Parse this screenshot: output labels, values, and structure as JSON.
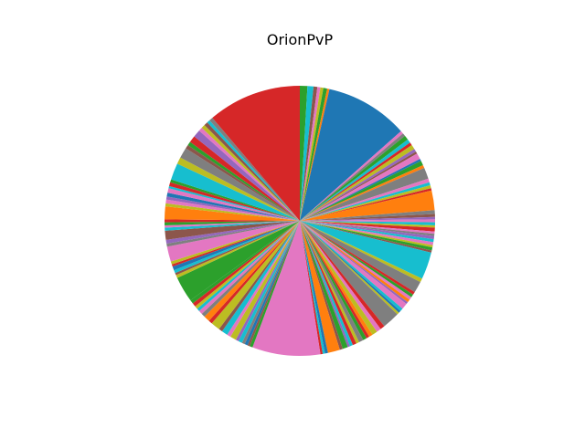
{
  "chart_data": {
    "type": "pie",
    "title": "OrionPvP",
    "start_angle_deg": 90,
    "direction": "clockwise",
    "grid": false,
    "legend": "none",
    "palette": [
      "#1f77b4",
      "#ff7f0e",
      "#2ca02c",
      "#d62728",
      "#9467bd",
      "#8c564b",
      "#e377c2",
      "#7f7f7f",
      "#bcbd22",
      "#17becf"
    ],
    "slices": [
      {
        "value": 1.0,
        "color": "#2ca02c"
      },
      {
        "value": 0.8,
        "color": "#17becf"
      },
      {
        "value": 0.5,
        "color": "#8c564b"
      },
      {
        "value": 0.4,
        "color": "#e377c2"
      },
      {
        "value": 0.4,
        "color": "#bcbd22"
      },
      {
        "value": 0.5,
        "color": "#2ca02c"
      },
      {
        "value": 0.3,
        "color": "#ff7f0e"
      },
      {
        "value": 11.0,
        "color": "#1f77b4"
      },
      {
        "value": 0.4,
        "color": "#e377c2"
      },
      {
        "value": 0.4,
        "color": "#7f7f7f"
      },
      {
        "value": 0.6,
        "color": "#2ca02c"
      },
      {
        "value": 0.5,
        "color": "#17becf"
      },
      {
        "value": 0.4,
        "color": "#d62728"
      },
      {
        "value": 0.6,
        "color": "#bcbd22"
      },
      {
        "value": 0.4,
        "color": "#9467bd"
      },
      {
        "value": 0.3,
        "color": "#8c564b"
      },
      {
        "value": 0.8,
        "color": "#e377c2"
      },
      {
        "value": 0.3,
        "color": "#1f77b4"
      },
      {
        "value": 0.6,
        "color": "#2ca02c"
      },
      {
        "value": 0.4,
        "color": "#ff7f0e"
      },
      {
        "value": 1.5,
        "color": "#7f7f7f"
      },
      {
        "value": 0.5,
        "color": "#e377c2"
      },
      {
        "value": 0.4,
        "color": "#17becf"
      },
      {
        "value": 0.4,
        "color": "#bcbd22"
      },
      {
        "value": 0.3,
        "color": "#d62728"
      },
      {
        "value": 2.6,
        "color": "#ff7f0e"
      },
      {
        "value": 0.5,
        "color": "#7f7f7f"
      },
      {
        "value": 0.4,
        "color": "#8c564b"
      },
      {
        "value": 0.3,
        "color": "#9467bd"
      },
      {
        "value": 0.4,
        "color": "#e377c2"
      },
      {
        "value": 0.4,
        "color": "#17becf"
      },
      {
        "value": 0.3,
        "color": "#bcbd22"
      },
      {
        "value": 0.5,
        "color": "#d62728"
      },
      {
        "value": 0.3,
        "color": "#e377c2"
      },
      {
        "value": 0.3,
        "color": "#7f7f7f"
      },
      {
        "value": 0.4,
        "color": "#9467bd"
      },
      {
        "value": 0.4,
        "color": "#17becf"
      },
      {
        "value": 0.4,
        "color": "#e377c2"
      },
      {
        "value": 0.3,
        "color": "#bcbd22"
      },
      {
        "value": 0.4,
        "color": "#2ca02c"
      },
      {
        "value": 0.3,
        "color": "#8c564b"
      },
      {
        "value": 3.6,
        "color": "#17becf"
      },
      {
        "value": 0.5,
        "color": "#bcbd22"
      },
      {
        "value": 1.5,
        "color": "#7f7f7f"
      },
      {
        "value": 0.4,
        "color": "#d62728"
      },
      {
        "value": 0.4,
        "color": "#2ca02c"
      },
      {
        "value": 0.4,
        "color": "#e377c2"
      },
      {
        "value": 0.4,
        "color": "#ff7f0e"
      },
      {
        "value": 0.3,
        "color": "#9467bd"
      },
      {
        "value": 0.8,
        "color": "#e377c2"
      },
      {
        "value": 0.4,
        "color": "#17becf"
      },
      {
        "value": 0.3,
        "color": "#1f77b4"
      },
      {
        "value": 0.3,
        "color": "#bcbd22"
      },
      {
        "value": 2.3,
        "color": "#7f7f7f"
      },
      {
        "value": 0.6,
        "color": "#d62728"
      },
      {
        "value": 0.6,
        "color": "#e377c2"
      },
      {
        "value": 0.7,
        "color": "#bcbd22"
      },
      {
        "value": 0.5,
        "color": "#ff7f0e"
      },
      {
        "value": 0.4,
        "color": "#d62728"
      },
      {
        "value": 0.5,
        "color": "#2ca02c"
      },
      {
        "value": 0.6,
        "color": "#7f7f7f"
      },
      {
        "value": 0.4,
        "color": "#bcbd22"
      },
      {
        "value": 0.5,
        "color": "#d62728"
      },
      {
        "value": 0.4,
        "color": "#17becf"
      },
      {
        "value": 0.3,
        "color": "#9467bd"
      },
      {
        "value": 0.7,
        "color": "#2ca02c"
      },
      {
        "value": 0.4,
        "color": "#8c564b"
      },
      {
        "value": 1.6,
        "color": "#ff7f0e"
      },
      {
        "value": 0.4,
        "color": "#1f77b4"
      },
      {
        "value": 0.3,
        "color": "#17becf"
      },
      {
        "value": 0.3,
        "color": "#d62728"
      },
      {
        "value": 9.0,
        "color": "#e377c2"
      },
      {
        "value": 0.4,
        "color": "#2ca02c"
      },
      {
        "value": 0.3,
        "color": "#8c564b"
      },
      {
        "value": 0.4,
        "color": "#1f77b4"
      },
      {
        "value": 0.4,
        "color": "#7f7f7f"
      },
      {
        "value": 0.5,
        "color": "#17becf"
      },
      {
        "value": 0.4,
        "color": "#9467bd"
      },
      {
        "value": 0.8,
        "color": "#bcbd22"
      },
      {
        "value": 0.5,
        "color": "#e377c2"
      },
      {
        "value": 0.8,
        "color": "#17becf"
      },
      {
        "value": 0.5,
        "color": "#8c564b"
      },
      {
        "value": 1.2,
        "color": "#bcbd22"
      },
      {
        "value": 0.5,
        "color": "#d62728"
      },
      {
        "value": 0.8,
        "color": "#ff7f0e"
      },
      {
        "value": 0.5,
        "color": "#7f7f7f"
      },
      {
        "value": 0.5,
        "color": "#e377c2"
      },
      {
        "value": 0.4,
        "color": "#17becf"
      },
      {
        "value": 0.4,
        "color": "#bcbd22"
      },
      {
        "value": 0.5,
        "color": "#d62728"
      },
      {
        "value": 0.5,
        "color": "#2ca02c"
      },
      {
        "value": 3.4,
        "color": "#2ca02c"
      },
      {
        "value": 0.4,
        "color": "#bcbd22"
      },
      {
        "value": 0.3,
        "color": "#8c564b"
      },
      {
        "value": 0.4,
        "color": "#17becf"
      },
      {
        "value": 0.5,
        "color": "#1f77b4"
      },
      {
        "value": 0.3,
        "color": "#d62728"
      },
      {
        "value": 0.4,
        "color": "#bcbd22"
      },
      {
        "value": 2.0,
        "color": "#e377c2"
      },
      {
        "value": 0.4,
        "color": "#7f7f7f"
      },
      {
        "value": 0.5,
        "color": "#9467bd"
      },
      {
        "value": 1.2,
        "color": "#8c564b"
      },
      {
        "value": 0.4,
        "color": "#17becf"
      },
      {
        "value": 0.3,
        "color": "#e377c2"
      },
      {
        "value": 0.4,
        "color": "#2ca02c"
      },
      {
        "value": 0.4,
        "color": "#d62728"
      },
      {
        "value": 1.7,
        "color": "#ff7f0e"
      },
      {
        "value": 0.4,
        "color": "#bcbd22"
      },
      {
        "value": 0.5,
        "color": "#e377c2"
      },
      {
        "value": 0.4,
        "color": "#9467bd"
      },
      {
        "value": 0.5,
        "color": "#1f77b4"
      },
      {
        "value": 0.6,
        "color": "#e377c2"
      },
      {
        "value": 0.3,
        "color": "#17becf"
      },
      {
        "value": 0.5,
        "color": "#d62728"
      },
      {
        "value": 0.4,
        "color": "#2ca02c"
      },
      {
        "value": 2.2,
        "color": "#17becf"
      },
      {
        "value": 0.9,
        "color": "#bcbd22"
      },
      {
        "value": 1.4,
        "color": "#7f7f7f"
      },
      {
        "value": 0.5,
        "color": "#8c564b"
      },
      {
        "value": 0.5,
        "color": "#2ca02c"
      },
      {
        "value": 0.9,
        "color": "#d62728"
      },
      {
        "value": 1.0,
        "color": "#9467bd"
      },
      {
        "value": 0.5,
        "color": "#e377c2"
      },
      {
        "value": 0.5,
        "color": "#bcbd22"
      },
      {
        "value": 0.5,
        "color": "#8c564b"
      },
      {
        "value": 0.4,
        "color": "#17becf"
      },
      {
        "value": 0.5,
        "color": "#7f7f7f"
      },
      {
        "value": 12.4,
        "color": "#d62728"
      }
    ]
  }
}
